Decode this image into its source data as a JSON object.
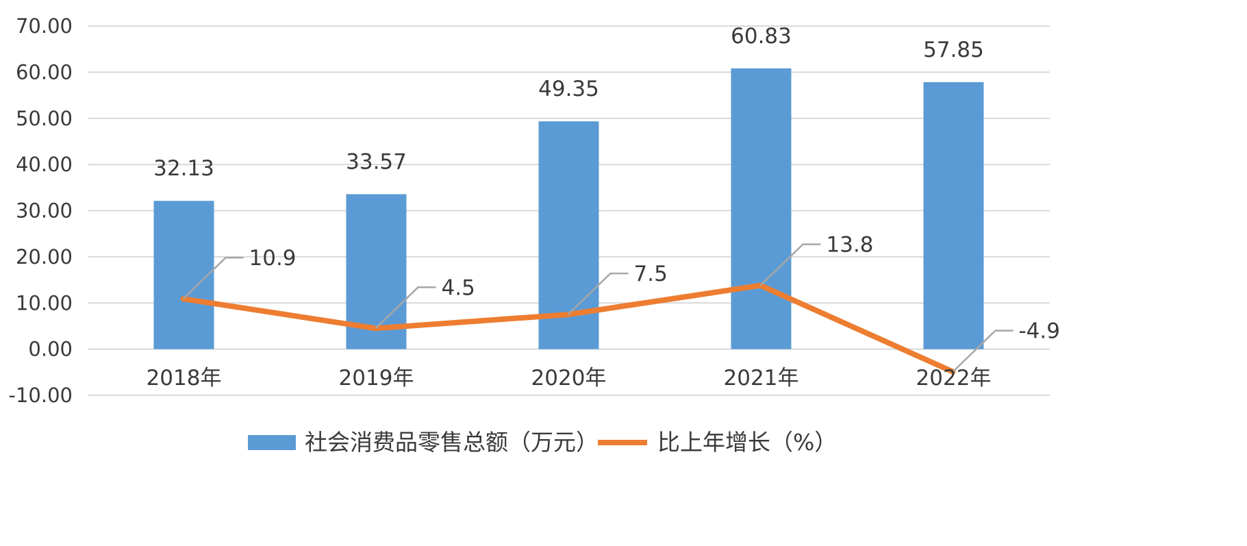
{
  "chart_data": {
    "type": "bar",
    "categories": [
      "2018年",
      "2019年",
      "2020年",
      "2021年",
      "2022年"
    ],
    "series": [
      {
        "name": "社会消费品零售总额（万元）",
        "type": "bar",
        "color": "#5b9bd5",
        "values": [
          32.13,
          33.57,
          49.35,
          60.83,
          57.85
        ],
        "labels": [
          "32.13",
          "33.57",
          "49.35",
          "60.83",
          "57.85"
        ]
      },
      {
        "name": "比上年增长（%）",
        "type": "line",
        "color": "#ed7d31",
        "values": [
          10.9,
          4.5,
          7.5,
          13.8,
          -4.9
        ],
        "labels": [
          "10.9",
          "4.5",
          "7.5",
          "13.8",
          "-4.9"
        ]
      }
    ],
    "ylim": [
      -10,
      70
    ],
    "yticks": [
      "-10.00",
      "0.00",
      "10.00",
      "20.00",
      "30.00",
      "40.00",
      "50.00",
      "60.00",
      "70.00"
    ],
    "grid": true,
    "legend_position": "bottom",
    "title": "",
    "xlabel": "",
    "ylabel": ""
  }
}
